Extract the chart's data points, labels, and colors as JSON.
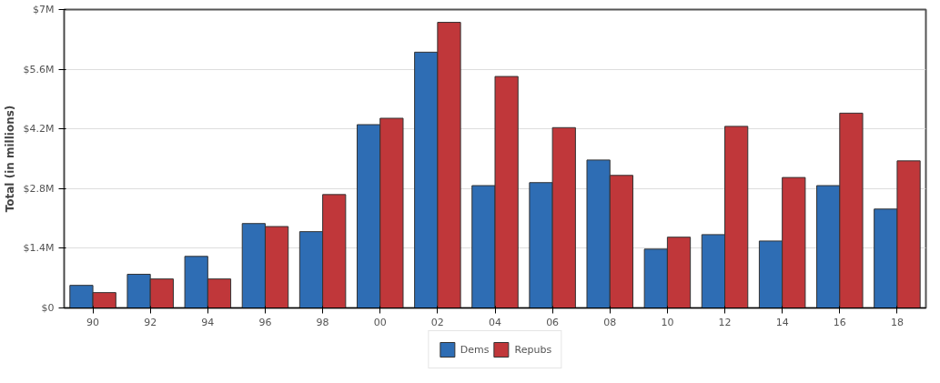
{
  "chart_data": {
    "type": "bar",
    "ylabel": "Total (in millions)",
    "categories": [
      "90",
      "92",
      "94",
      "96",
      "98",
      "00",
      "02",
      "04",
      "06",
      "08",
      "10",
      "12",
      "14",
      "16",
      "18"
    ],
    "series": [
      {
        "name": "Dems",
        "color": "#2e6db4",
        "values": [
          0.53,
          0.79,
          1.21,
          1.98,
          1.79,
          4.3,
          6.0,
          2.87,
          2.94,
          3.47,
          1.38,
          1.72,
          1.57,
          2.87,
          2.32
        ]
      },
      {
        "name": "Repubs",
        "color": "#c0373a",
        "values": [
          0.36,
          0.68,
          0.68,
          1.91,
          2.66,
          4.45,
          6.7,
          5.43,
          4.23,
          3.11,
          1.66,
          4.26,
          3.06,
          4.57,
          3.45
        ]
      }
    ],
    "ylim": [
      0,
      7
    ],
    "yticks": [
      {
        "value": 0,
        "label": "$0"
      },
      {
        "value": 1.4,
        "label": "$1.4M"
      },
      {
        "value": 2.8,
        "label": "$2.8M"
      },
      {
        "value": 4.2,
        "label": "$4.2M"
      },
      {
        "value": 5.6,
        "label": "$5.6M"
      },
      {
        "value": 7,
        "label": "$7M"
      }
    ],
    "grid": "y",
    "legend": "bottom"
  }
}
